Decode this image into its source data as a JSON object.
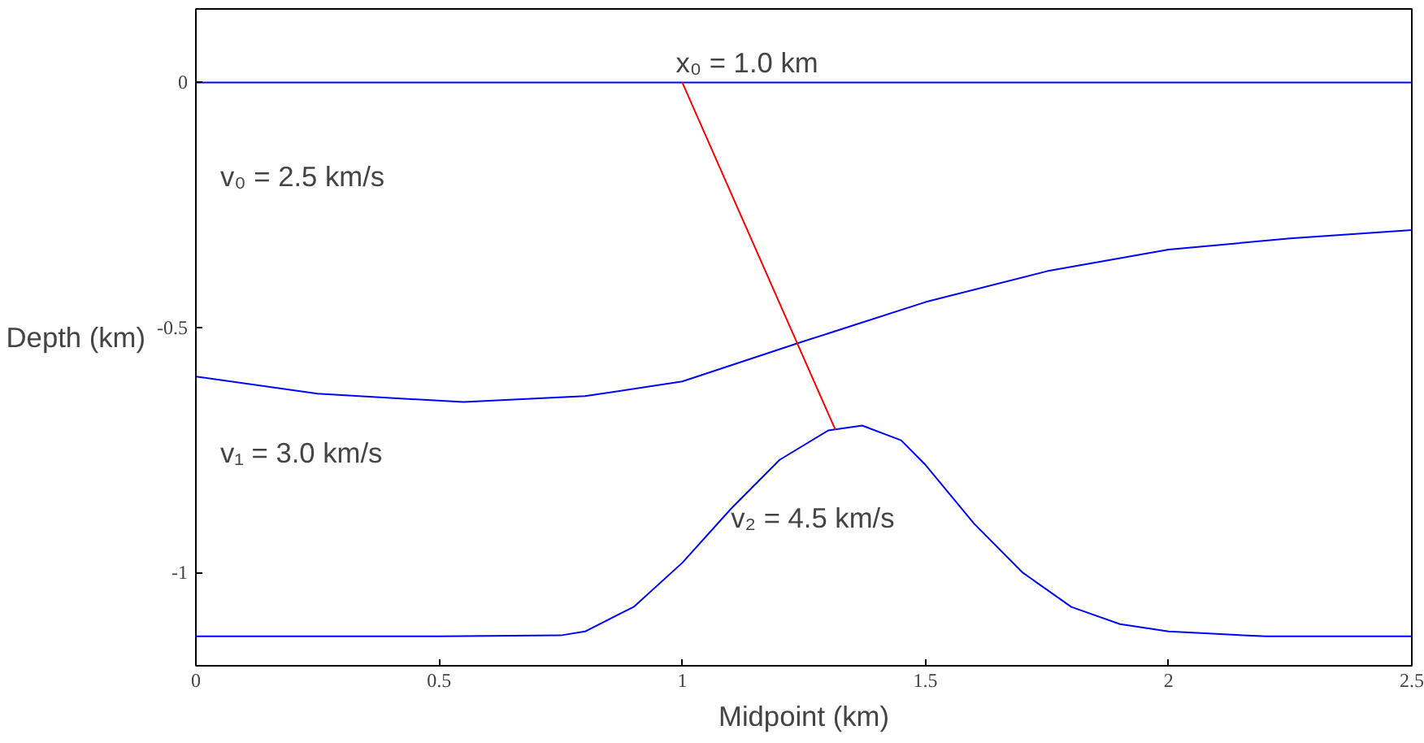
{
  "chart_data": {
    "type": "line",
    "xlabel": "Midpoint (km)",
    "ylabel": "Depth (km)",
    "xlim": [
      0,
      2.5
    ],
    "ylim": [
      -1.19,
      0.15
    ],
    "xticks": [
      0,
      0.5,
      1,
      1.5,
      2,
      2.5
    ],
    "yticks": [
      0,
      -0.5,
      -1
    ],
    "grid": false,
    "series": [
      {
        "color": "#0000ff",
        "x": [
          0,
          2.5
        ],
        "values": [
          0,
          0
        ]
      },
      {
        "color": "#0000ff",
        "x": [
          0,
          0.25,
          0.55,
          0.8,
          1.0,
          1.25,
          1.5,
          1.75,
          2.0,
          2.25,
          2.5
        ],
        "values": [
          -0.6,
          -0.635,
          -0.652,
          -0.64,
          -0.61,
          -0.528,
          -0.448,
          -0.385,
          -0.341,
          -0.318,
          -0.301
        ]
      },
      {
        "color": "#0000ff",
        "x": [
          0,
          0.5,
          0.75,
          0.8,
          0.9,
          1.0,
          1.1,
          1.2,
          1.3,
          1.37,
          1.45,
          1.5,
          1.6,
          1.7,
          1.8,
          1.9,
          2.0,
          2.2,
          2.5
        ],
        "values": [
          -1.13,
          -1.13,
          -1.128,
          -1.12,
          -1.07,
          -0.98,
          -0.87,
          -0.77,
          -0.71,
          -0.7,
          -0.73,
          -0.78,
          -0.9,
          -1.0,
          -1.07,
          -1.105,
          -1.12,
          -1.13,
          -1.13
        ]
      },
      {
        "color": "#ff0000",
        "x": [
          1.0,
          1.315
        ],
        "values": [
          0,
          -0.709
        ]
      }
    ],
    "annotations": [
      {
        "text": "x₀ = 1.0 km",
        "x": 1.0,
        "y": 0
      },
      "v₀ = 2.5 km/s",
      "v₁ = 3.0 km/s",
      "v₂ = 4.5 km/s"
    ]
  }
}
